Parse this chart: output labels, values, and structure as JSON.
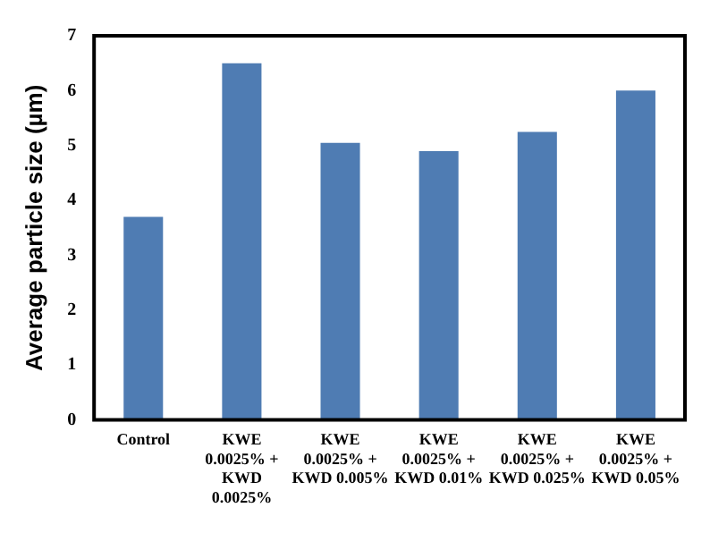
{
  "chart_data": {
    "type": "bar",
    "ylabel": "Average particle size (µm)",
    "categories": [
      "Control",
      "KWE 0.0025% + KWD 0.0025%",
      "KWE 0.0025% + KWD 0.005%",
      "KWE 0.0025% + KWD 0.01%",
      "KWE 0.0025% + KWD 0.025%",
      "KWE 0.0025% + KWD 0.05%"
    ],
    "values": [
      3.7,
      6.5,
      5.05,
      4.9,
      5.25,
      6.0
    ],
    "color": "#4f7cb3",
    "ylim": [
      0,
      7
    ],
    "yticks": [
      0,
      1,
      2,
      3,
      4,
      5,
      6,
      7
    ],
    "grid": false,
    "legend": false
  }
}
